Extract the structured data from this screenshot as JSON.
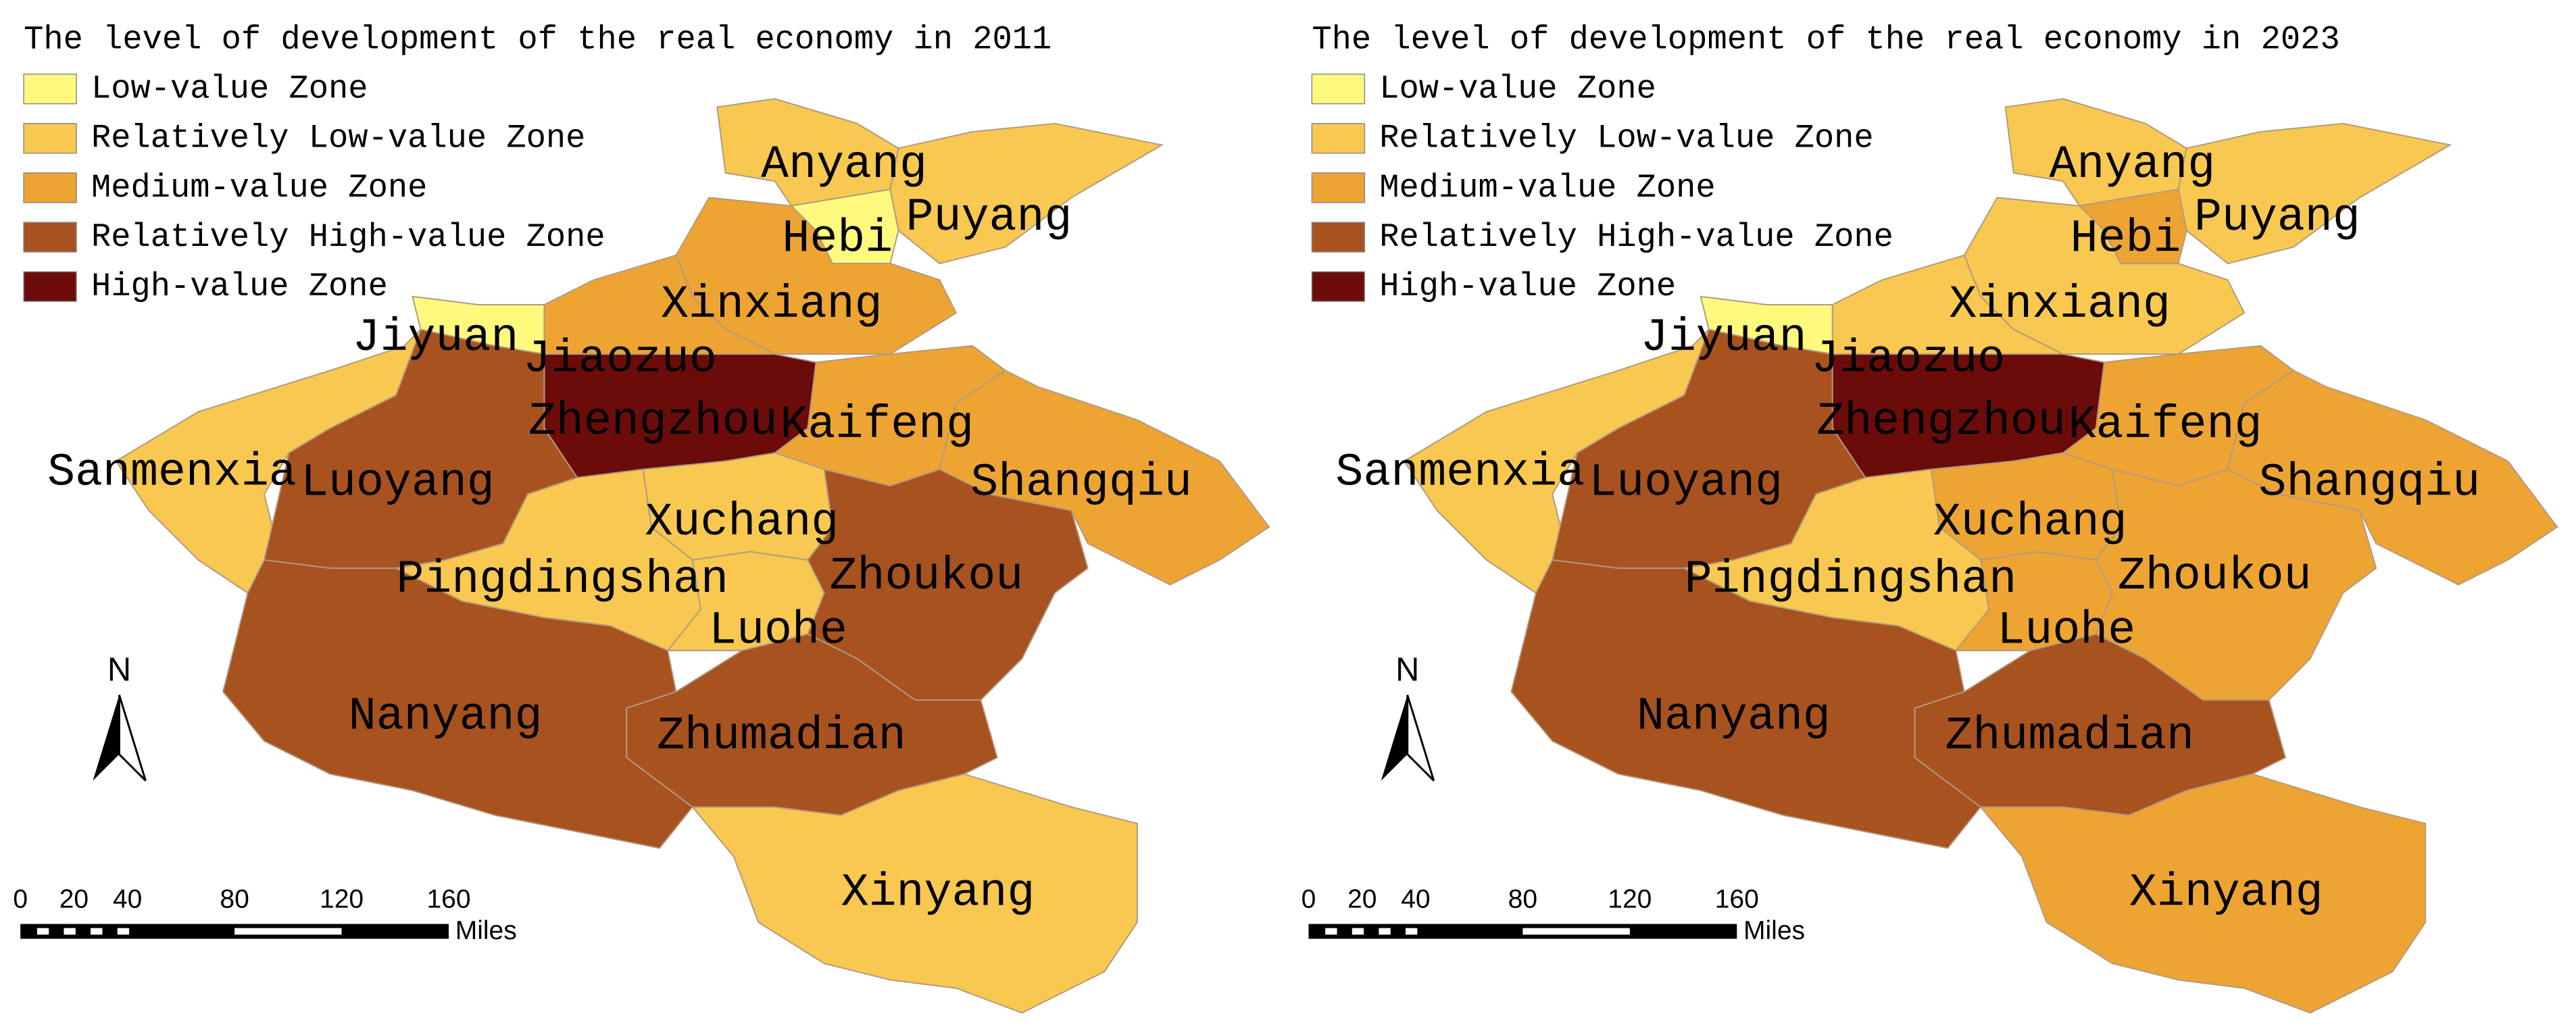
{
  "maps": [
    {
      "title": "The level of development of the real economy in 2011",
      "legend": [
        {
          "label": "Low-value Zone",
          "color": "#fffa7e"
        },
        {
          "label": "Relatively Low-value Zone",
          "color": "#f8c850"
        },
        {
          "label": "Medium-value Zone",
          "color": "#eea432"
        },
        {
          "label": "Relatively High-value Zone",
          "color": "#a85220"
        },
        {
          "label": "High-value Zone",
          "color": "#6b0c0a"
        }
      ],
      "cities": [
        {
          "name": "Anyang",
          "color": "#f8c850"
        },
        {
          "name": "Puyang",
          "color": "#f8c850"
        },
        {
          "name": "Hebi",
          "color": "#fffa7e"
        },
        {
          "name": "Xinxiang",
          "color": "#eea432"
        },
        {
          "name": "Jiaozuo",
          "color": "#eea432"
        },
        {
          "name": "Jiyuan",
          "color": "#fffa7e"
        },
        {
          "name": "Zhengzhou",
          "color": "#6b0c0a"
        },
        {
          "name": "Kaifeng",
          "color": "#eea432"
        },
        {
          "name": "Shangqiu",
          "color": "#eea432"
        },
        {
          "name": "Sanmenxia",
          "color": "#f8c850"
        },
        {
          "name": "Luoyang",
          "color": "#a85220"
        },
        {
          "name": "Pingdingshan",
          "color": "#f8c850"
        },
        {
          "name": "Xuchang",
          "color": "#f8c850"
        },
        {
          "name": "Luohe",
          "color": "#f8c850"
        },
        {
          "name": "Zhoukou",
          "color": "#a85220"
        },
        {
          "name": "Nanyang",
          "color": "#a85220"
        },
        {
          "name": "Zhumadian",
          "color": "#a85220"
        },
        {
          "name": "Xinyang",
          "color": "#f8c850"
        }
      ],
      "north": "N",
      "scale": {
        "ticks": [
          0,
          20,
          40,
          80,
          120,
          160
        ],
        "unit": "Miles"
      }
    },
    {
      "title": "The level of development of the real economy in 2023",
      "legend": [
        {
          "label": "Low-value Zone",
          "color": "#fffa7e"
        },
        {
          "label": "Relatively Low-value Zone",
          "color": "#f8c850"
        },
        {
          "label": "Medium-value Zone",
          "color": "#eea432"
        },
        {
          "label": "Relatively High-value Zone",
          "color": "#a85220"
        },
        {
          "label": "High-value Zone",
          "color": "#6b0c0a"
        }
      ],
      "cities": [
        {
          "name": "Anyang",
          "color": "#f8c850"
        },
        {
          "name": "Puyang",
          "color": "#f8c850"
        },
        {
          "name": "Hebi",
          "color": "#eea432"
        },
        {
          "name": "Xinxiang",
          "color": "#f8c850"
        },
        {
          "name": "Jiaozuo",
          "color": "#f8c850"
        },
        {
          "name": "Jiyuan",
          "color": "#fffa7e"
        },
        {
          "name": "Zhengzhou",
          "color": "#6b0c0a"
        },
        {
          "name": "Kaifeng",
          "color": "#eea432"
        },
        {
          "name": "Shangqiu",
          "color": "#eea432"
        },
        {
          "name": "Sanmenxia",
          "color": "#f8c850"
        },
        {
          "name": "Luoyang",
          "color": "#a85220"
        },
        {
          "name": "Pingdingshan",
          "color": "#f8c850"
        },
        {
          "name": "Xuchang",
          "color": "#eea432"
        },
        {
          "name": "Luohe",
          "color": "#eea432"
        },
        {
          "name": "Zhoukou",
          "color": "#eea432"
        },
        {
          "name": "Nanyang",
          "color": "#a85220"
        },
        {
          "name": "Zhumadian",
          "color": "#a85220"
        },
        {
          "name": "Xinyang",
          "color": "#eea432"
        }
      ],
      "north": "N",
      "scale": {
        "ticks": [
          0,
          20,
          40,
          80,
          120,
          160
        ],
        "unit": "Miles"
      }
    }
  ]
}
